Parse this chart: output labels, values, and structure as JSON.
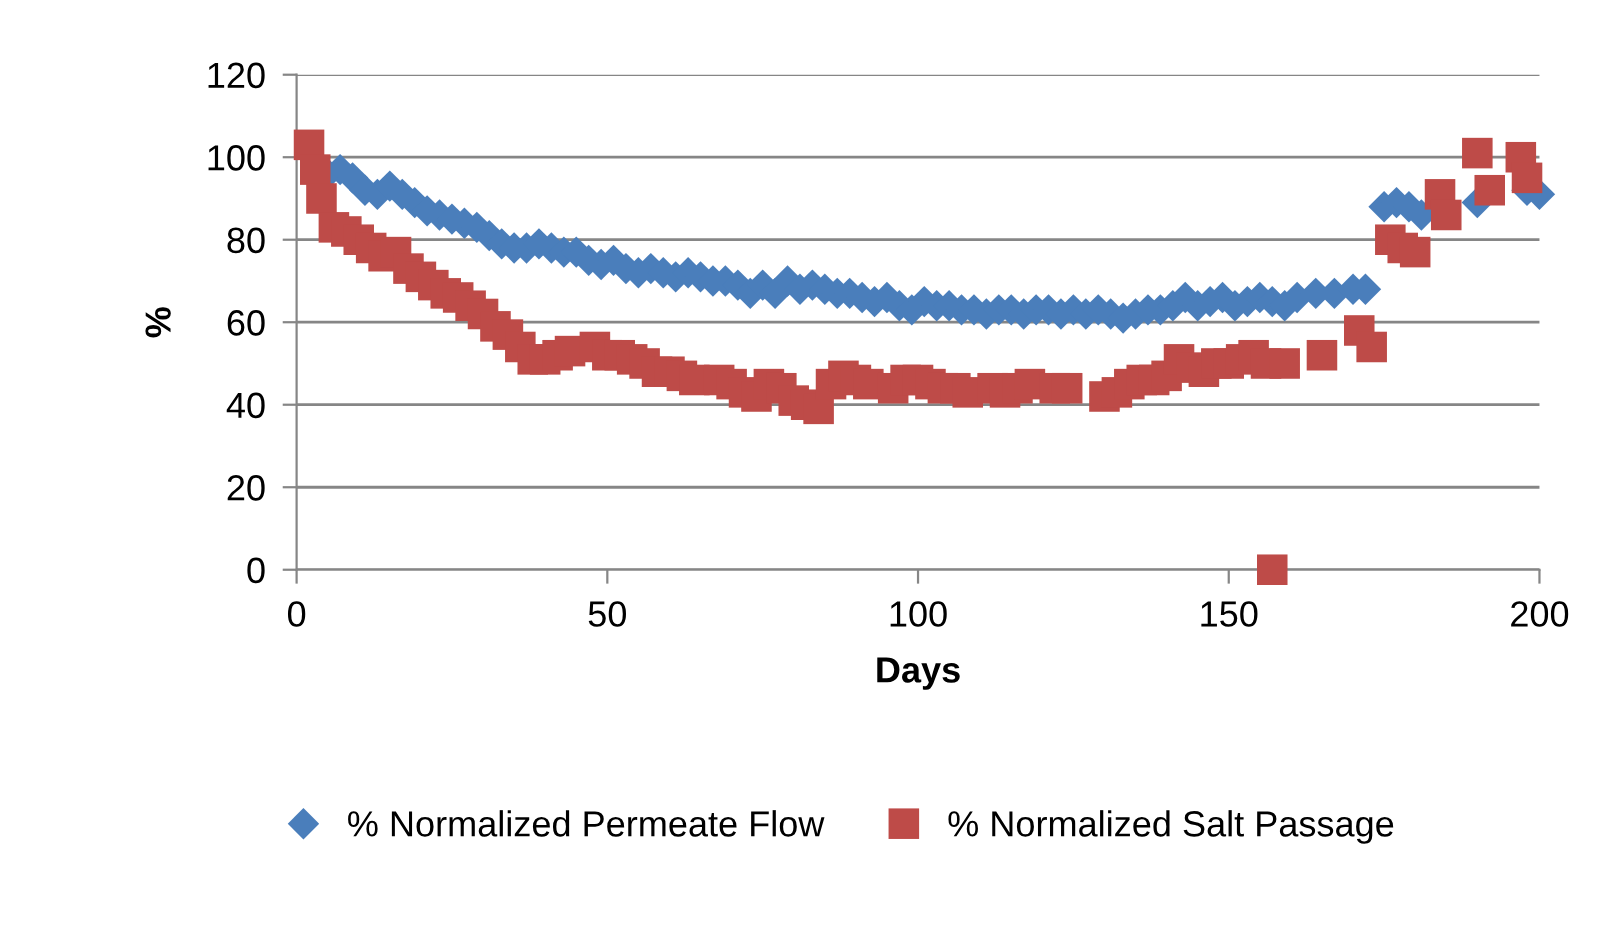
{
  "chart_data": {
    "type": "scatter",
    "xlabel": "Days",
    "ylabel": "%",
    "xlim": [
      0,
      200
    ],
    "xticks": [
      0,
      50,
      100,
      150,
      200
    ],
    "ylim": [
      0,
      120
    ],
    "yticks": [
      0,
      20,
      40,
      60,
      80,
      100,
      120
    ],
    "grid": "y",
    "legend": "bottom",
    "series": [
      {
        "name": "% Normalized Permeate Flow",
        "color": "#4a7ebb",
        "marker": "diamond",
        "x": [
          5,
          7,
          9,
          11,
          13,
          15,
          17,
          19,
          21,
          23,
          25,
          27,
          29,
          31,
          33,
          35,
          37,
          39,
          41,
          43,
          45,
          47,
          49,
          51,
          53,
          55,
          57,
          59,
          61,
          63,
          65,
          67,
          69,
          71,
          73,
          75,
          77,
          79,
          81,
          83,
          85,
          87,
          89,
          91,
          93,
          95,
          97,
          99,
          101,
          103,
          105,
          107,
          109,
          111,
          113,
          115,
          117,
          119,
          121,
          123,
          125,
          127,
          129,
          131,
          133,
          135,
          137,
          139,
          141,
          143,
          145,
          147,
          149,
          151,
          153,
          155,
          157,
          159,
          161,
          164,
          167,
          170,
          172,
          175,
          177,
          179,
          181,
          190,
          193,
          198,
          200
        ],
        "values": [
          96,
          97,
          95,
          92,
          91,
          93,
          91,
          89,
          87,
          86,
          85,
          84,
          83,
          81,
          79,
          78,
          78,
          79,
          78,
          77,
          77,
          75,
          74,
          75,
          73,
          72,
          73,
          72,
          71,
          72,
          71,
          70,
          70,
          69,
          67,
          69,
          67,
          70,
          68,
          69,
          68,
          67,
          67,
          66,
          65,
          66,
          64,
          63,
          65,
          64,
          64,
          63,
          63,
          62,
          63,
          63,
          62,
          63,
          63,
          62,
          63,
          62,
          63,
          62,
          61,
          62,
          63,
          63,
          64,
          66,
          64,
          65,
          66,
          64,
          65,
          66,
          65,
          64,
          66,
          67,
          67,
          68,
          68,
          88,
          89,
          88,
          86,
          89,
          null,
          92,
          91
        ]
      },
      {
        "name": "% Normalized Salt Passage",
        "color": "#be4b48",
        "marker": "square",
        "x": [
          2,
          3,
          4,
          6,
          8,
          10,
          12,
          14,
          16,
          18,
          20,
          22,
          24,
          26,
          28,
          30,
          32,
          34,
          36,
          38,
          40,
          42,
          44,
          48,
          50,
          52,
          54,
          56,
          58,
          60,
          62,
          64,
          68,
          70,
          72,
          74,
          76,
          78,
          80,
          82,
          84,
          86,
          88,
          90,
          92,
          96,
          98,
          100,
          102,
          104,
          106,
          108,
          112,
          114,
          116,
          118,
          122,
          124,
          130,
          132,
          134,
          136,
          138,
          140,
          142,
          144,
          146,
          148,
          150,
          152,
          154,
          156,
          157,
          159,
          165,
          171,
          173,
          176,
          178,
          180,
          184,
          185,
          190,
          192,
          197,
          198
        ],
        "values": [
          103,
          97,
          90,
          83,
          82,
          80,
          78,
          76,
          77,
          73,
          71,
          69,
          67,
          66,
          64,
          62,
          59,
          57,
          54,
          51,
          51,
          52,
          53,
          54,
          52,
          52,
          51,
          50,
          48,
          48,
          47,
          46,
          46,
          45,
          43,
          42,
          45,
          44,
          41,
          40,
          39,
          45,
          47,
          46,
          45,
          44,
          46,
          46,
          45,
          44,
          44,
          43,
          44,
          43,
          44,
          45,
          44,
          44,
          42,
          43,
          45,
          46,
          46,
          47,
          51,
          49,
          48,
          50,
          50,
          51,
          52,
          50,
          0,
          50,
          52,
          58,
          54,
          80,
          78,
          77,
          91,
          86,
          101,
          92,
          100,
          95
        ]
      }
    ]
  }
}
